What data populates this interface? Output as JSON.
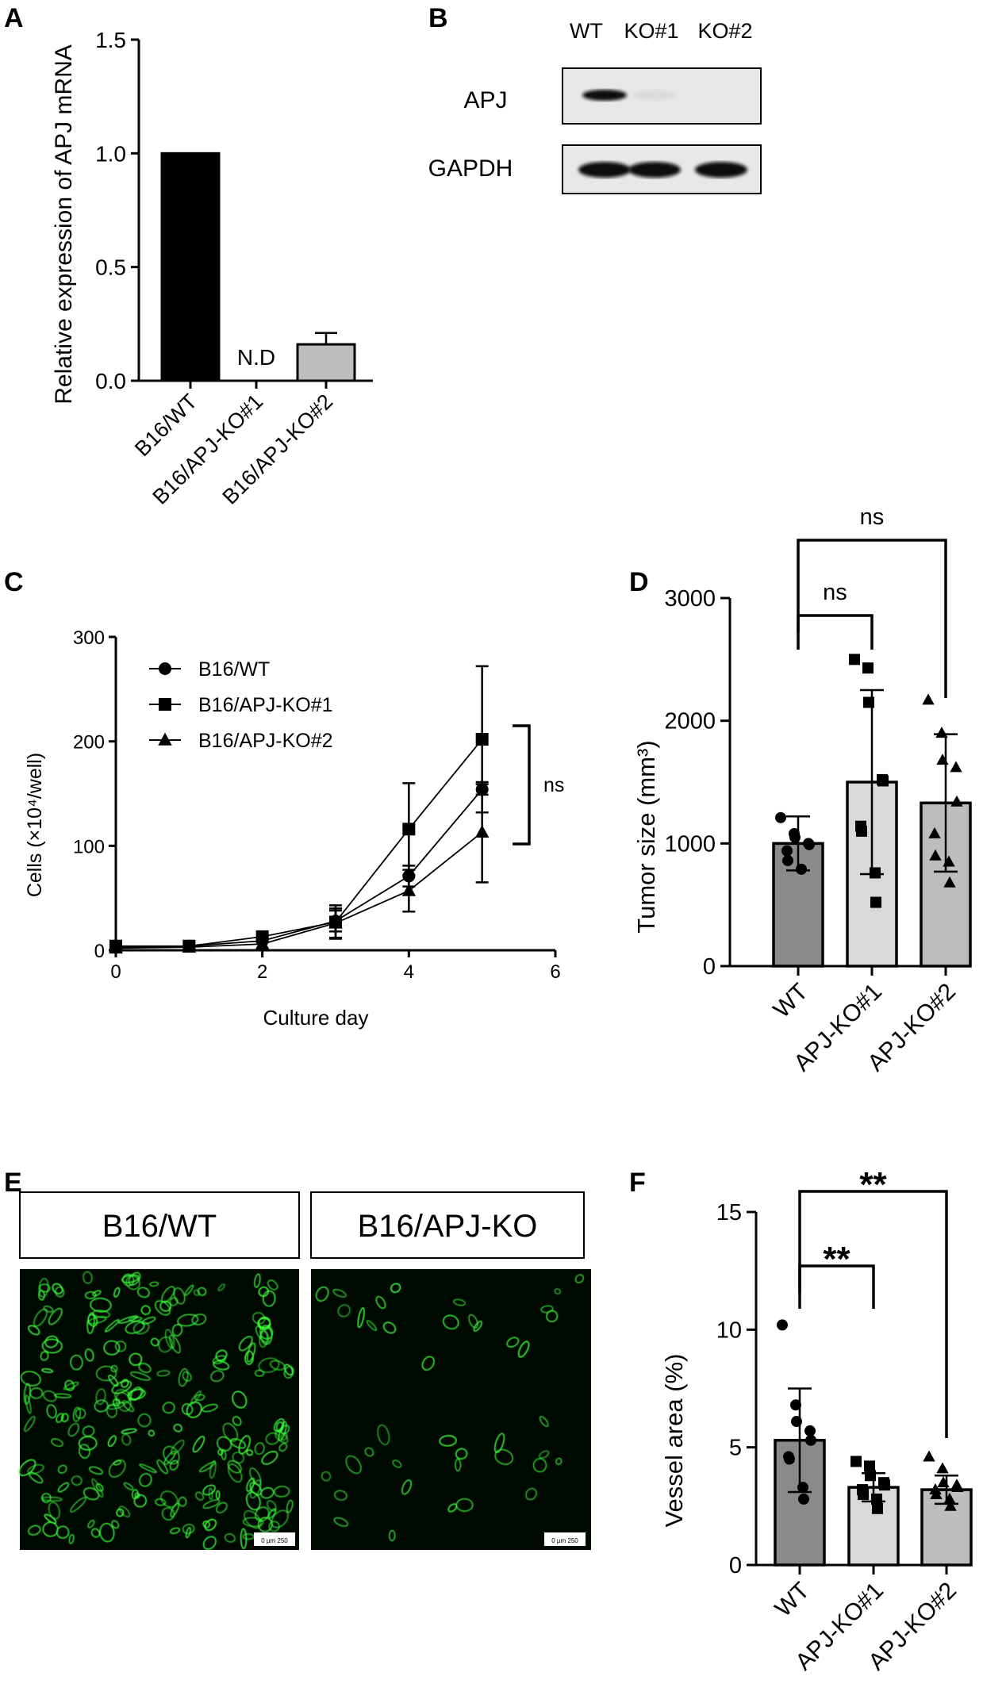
{
  "panels": {
    "A": "A",
    "B": "B",
    "C": "C",
    "D": "D",
    "E": "E",
    "F": "F"
  },
  "chart_data": [
    {
      "id": "A",
      "type": "bar",
      "ylabel": "Relative expression of APJ mRNA",
      "categories": [
        "B16/WT",
        "B16/APJ-KO#1",
        "B16/APJ-KO#2"
      ],
      "values": [
        1.0,
        null,
        0.16
      ],
      "error": [
        0,
        0,
        0.05
      ],
      "colors": [
        "#000000",
        "#ffffff",
        "#bdbdbd"
      ],
      "value_labels": [
        "",
        "N.D",
        ""
      ],
      "ylim": [
        0,
        1.5
      ],
      "yticks": [
        0.0,
        0.5,
        1.0,
        1.5
      ],
      "ytick_labels": [
        "0.0",
        "0.5",
        "1.0",
        "1.5"
      ]
    },
    {
      "id": "C",
      "type": "line",
      "xlabel": "Culture day",
      "ylabel": "Cells (×10⁴/well)",
      "xlim": [
        0,
        6
      ],
      "ylim": [
        0,
        300
      ],
      "xticks": [
        0,
        2,
        4,
        6
      ],
      "yticks": [
        0,
        100,
        200,
        300
      ],
      "series": [
        {
          "name": "B16/WT",
          "marker": "circle",
          "x": [
            0,
            1,
            2,
            3,
            4,
            5
          ],
          "y": [
            3,
            4,
            9,
            28,
            71,
            154
          ],
          "err": [
            1,
            1,
            2,
            10,
            10,
            5
          ]
        },
        {
          "name": "B16/APJ-KO#1",
          "marker": "square",
          "x": [
            0,
            1,
            2,
            3,
            4,
            5
          ],
          "y": [
            4,
            4,
            13,
            27,
            116,
            202
          ],
          "err": [
            1,
            1,
            2,
            16,
            44,
            70
          ]
        },
        {
          "name": "B16/APJ-KO#2",
          "marker": "triangle",
          "x": [
            0,
            1,
            2,
            3,
            4,
            5
          ],
          "y": [
            2,
            3,
            6,
            26,
            57,
            113
          ],
          "err": [
            1,
            1,
            2,
            14,
            20,
            48
          ]
        }
      ],
      "annotation": "ns"
    },
    {
      "id": "D",
      "type": "bar",
      "ylabel": "Tumor size (mm³)",
      "categories": [
        "WT",
        "APJ-KO#1",
        "APJ-KO#2"
      ],
      "values": [
        1000,
        1500,
        1330
      ],
      "error": [
        220,
        750,
        560
      ],
      "colors": [
        "#8a8a8a",
        "#d9d9d9",
        "#bdbdbd"
      ],
      "ylim": [
        0,
        3000
      ],
      "yticks": [
        0,
        1000,
        2000,
        3000
      ],
      "points": [
        [
          1210,
          1080,
          1050,
          1000,
          990,
          940,
          860,
          790
        ],
        [
          2500,
          2430,
          2150,
          1520,
          1510,
          1140,
          1100,
          760,
          520
        ],
        [
          2170,
          1900,
          1680,
          1620,
          1340,
          1080,
          900,
          850,
          680
        ]
      ],
      "markers": [
        "circle",
        "square",
        "triangle"
      ],
      "comparisons": [
        {
          "from": 0,
          "to": 1,
          "label": "ns"
        },
        {
          "from": 0,
          "to": 2,
          "label": "ns"
        }
      ]
    },
    {
      "id": "F",
      "type": "bar",
      "ylabel": "Vessel area (%)",
      "categories": [
        "WT",
        "APJ-KO#1",
        "APJ-KO#2"
      ],
      "values": [
        5.3,
        3.3,
        3.2
      ],
      "error": [
        2.2,
        0.6,
        0.6
      ],
      "colors": [
        "#8a8a8a",
        "#d9d9d9",
        "#bdbdbd"
      ],
      "ylim": [
        0,
        15
      ],
      "yticks": [
        0,
        5,
        10,
        15
      ],
      "points": [
        [
          10.2,
          6.8,
          6.1,
          5.7,
          5.3,
          4.6,
          4.5,
          3.3,
          2.8
        ],
        [
          4.4,
          4.2,
          3.8,
          3.5,
          3.4,
          3.2,
          3.0,
          2.8,
          2.4
        ],
        [
          4.6,
          4.1,
          3.5,
          3.4,
          3.3,
          3.2,
          3.0,
          2.8,
          2.5
        ]
      ],
      "markers": [
        "circle",
        "square",
        "triangle"
      ],
      "comparisons": [
        {
          "from": 0,
          "to": 1,
          "label": "**"
        },
        {
          "from": 0,
          "to": 2,
          "label": "**"
        }
      ]
    }
  ],
  "blot": {
    "lanes": [
      "WT",
      "KO#1",
      "KO#2"
    ],
    "rows": [
      {
        "label": "APJ",
        "intensity": [
          1.0,
          0.05,
          0.0
        ]
      },
      {
        "label": "GAPDH",
        "intensity": [
          1.0,
          1.0,
          1.0
        ]
      }
    ]
  },
  "micrographs": {
    "labels": [
      "B16/WT",
      "B16/APJ-KO"
    ],
    "scalebar": "0    µm 250"
  }
}
